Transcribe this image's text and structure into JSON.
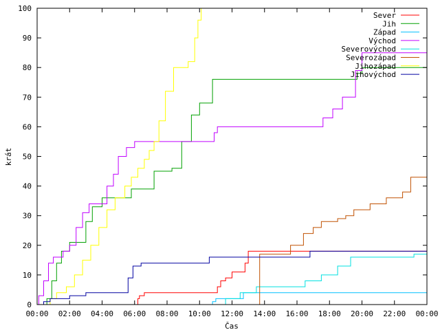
{
  "chart_data": {
    "type": "line",
    "step": true,
    "xlabel": "Čas",
    "ylabel": "krát",
    "xlim": [
      0,
      24
    ],
    "ylim": [
      0,
      100
    ],
    "grid": false,
    "legend_position": "top-right",
    "x_tick_values": [
      0,
      2,
      4,
      6,
      8,
      10,
      12,
      14,
      16,
      18,
      20,
      22,
      24
    ],
    "x_tick_labels": [
      "00:00",
      "02:00",
      "04:00",
      "06:00",
      "08:00",
      "10:00",
      "12:00",
      "14:00",
      "16:00",
      "18:00",
      "20:00",
      "22:00",
      "00:00"
    ],
    "y_tick_values": [
      0,
      10,
      20,
      30,
      40,
      50,
      60,
      70,
      80,
      90,
      100
    ],
    "y_tick_labels": [
      "0",
      "10",
      "20",
      "30",
      "40",
      "50",
      "60",
      "70",
      "80",
      "90",
      "100"
    ],
    "series": [
      {
        "name": "Sever",
        "color": "#ff0000",
        "x": [
          0,
          6.1,
          6.2,
          6.3,
          6.6,
          6.7,
          7.0,
          11.0,
          11.1,
          11.3,
          11.6,
          12.0,
          12.8,
          13.0,
          24
        ],
        "y": [
          0,
          0,
          2,
          3,
          4,
          4,
          4,
          4,
          6,
          8,
          9,
          11,
          14,
          18,
          18
        ]
      },
      {
        "name": "Jih",
        "color": "#00a000",
        "x": [
          0,
          0.6,
          0.9,
          1.2,
          1.5,
          2.0,
          2.5,
          3.0,
          3.4,
          4.0,
          5.0,
          5.8,
          6.5,
          7.2,
          7.6,
          8.3,
          8.9,
          9.5,
          10.0,
          10.8,
          19.4,
          19.7,
          20.0,
          24
        ],
        "y": [
          0,
          2,
          8,
          14,
          18,
          21,
          21,
          28,
          33,
          36,
          36,
          39,
          39,
          45,
          45,
          46,
          55,
          64,
          68,
          76,
          76,
          78,
          80,
          80
        ]
      },
      {
        "name": "Západ",
        "color": "#00c0ff",
        "x": [
          0,
          10.6,
          10.8,
          11.0,
          12.7,
          24
        ],
        "y": [
          0,
          0,
          1,
          2,
          4,
          5
        ]
      },
      {
        "name": "Východ",
        "color": "#c000ff",
        "x": [
          0,
          0.1,
          0.4,
          0.7,
          1.0,
          1.6,
          2.0,
          2.4,
          2.8,
          3.2,
          3.9,
          4.3,
          4.7,
          5.0,
          5.5,
          6.0,
          6.5,
          10.9,
          11.1,
          17.0,
          17.6,
          18.2,
          18.8,
          19.6,
          20.0,
          24
        ],
        "y": [
          0,
          3,
          8,
          14,
          16,
          18,
          20,
          26,
          31,
          34,
          34,
          40,
          44,
          50,
          53,
          55,
          55,
          58,
          60,
          60,
          63,
          66,
          70,
          79,
          85,
          88
        ]
      },
      {
        "name": "Severovýchod",
        "color": "#00e0e0",
        "x": [
          0,
          11.3,
          11.6,
          12.5,
          13.5,
          15.5,
          16.5,
          17.5,
          18.5,
          19.3,
          20.0,
          21.5,
          22.0,
          22.5,
          23.2,
          24
        ],
        "y": [
          0,
          0,
          2,
          4,
          6,
          6,
          8,
          10,
          13,
          16,
          16,
          16,
          16,
          16,
          17,
          18
        ]
      },
      {
        "name": "Severozápad",
        "color": "#c05000",
        "x": [
          0,
          13.2,
          13.7,
          15.0,
          15.6,
          16.4,
          17.0,
          17.5,
          18.5,
          19.0,
          19.5,
          20.5,
          21.5,
          22.5,
          23.0,
          24
        ],
        "y": [
          0,
          0,
          17,
          17,
          20,
          24,
          26,
          28,
          29,
          30,
          32,
          34,
          36,
          38,
          43,
          44
        ]
      },
      {
        "name": "Jihozápad",
        "color": "#ffff00",
        "x": [
          0,
          0.5,
          0.8,
          1.2,
          1.8,
          2.3,
          2.8,
          3.3,
          3.8,
          4.3,
          4.8,
          5.4,
          5.8,
          6.2,
          6.6,
          6.9,
          7.2,
          7.5,
          7.9,
          8.4,
          9.3,
          9.7,
          9.9,
          10.1
        ],
        "y": [
          0,
          0,
          2,
          4,
          6,
          10,
          15,
          20,
          26,
          32,
          36,
          40,
          43,
          46,
          49,
          52,
          55,
          62,
          72,
          80,
          82,
          90,
          96,
          100
        ]
      },
      {
        "name": "Jihovýchod",
        "color": "#0000a0",
        "x": [
          0,
          0.4,
          0.8,
          1.3,
          2.0,
          3.0,
          5.3,
          5.6,
          5.9,
          6.4,
          7.0,
          10.0,
          10.6,
          12.0,
          16.3,
          16.8,
          24
        ],
        "y": [
          0,
          1,
          2,
          2,
          3,
          4,
          4,
          9,
          13,
          14,
          14,
          14,
          16,
          16,
          16,
          18,
          18
        ]
      }
    ]
  }
}
